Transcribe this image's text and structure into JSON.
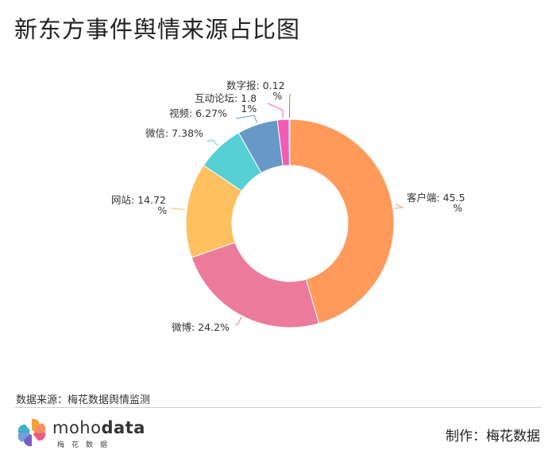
{
  "title": "新东方事件舆情来源占比图",
  "source_note": "数据来源：梅花数据舆情监测",
  "logo": {
    "brand_light": "moho",
    "brand_bold": "data",
    "subtitle": "梅花数据"
  },
  "author": "制作：梅花数据",
  "chart_data": {
    "type": "pie",
    "variant": "donut",
    "title": "新东方事件舆情来源占比图",
    "unit": "%",
    "slices": [
      {
        "label": "客户端",
        "value": 45.5,
        "color": "#FF9A5A",
        "label_text": [
          "客户端: 45.5",
          "%"
        ],
        "line_color": "#E8A080"
      },
      {
        "label": "微博",
        "value": 24.2,
        "color": "#EC7B9B",
        "label_text": [
          "微博: 24.2%"
        ],
        "line_color": "#EC7B9B"
      },
      {
        "label": "网站",
        "value": 14.72,
        "color": "#FFC05F",
        "label_text": [
          "网站: 14.72",
          "%"
        ],
        "line_color": "#FFC05F"
      },
      {
        "label": "微信",
        "value": 7.38,
        "color": "#56D0D5",
        "label_text": [
          "微信: 7.38%"
        ],
        "line_color": "#56D0D5"
      },
      {
        "label": "视频",
        "value": 6.27,
        "color": "#6899C6",
        "label_text": [
          "视频: 6.27%"
        ],
        "line_color": "#6899C6"
      },
      {
        "label": "互动论坛",
        "value": 1.81,
        "color": "#F25CB3",
        "label_text": [
          "互动论坛: 1.8",
          "1%"
        ],
        "line_color": "#F25CB3"
      },
      {
        "label": "数字报",
        "value": 0.12,
        "color": "#7F9B3A",
        "label_text": [
          "数字报: 0.12",
          "%"
        ],
        "line_color": "#7F9B3A"
      }
    ]
  }
}
